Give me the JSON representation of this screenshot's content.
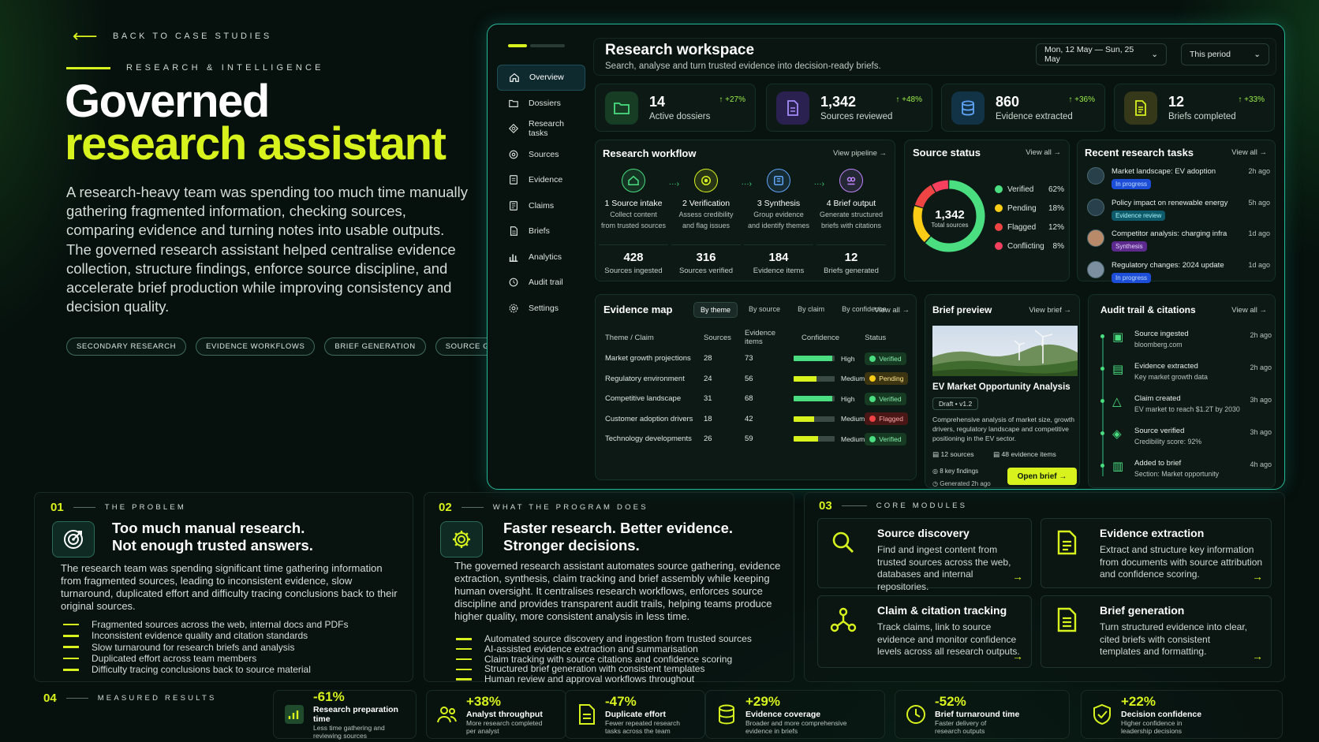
{
  "hero": {
    "back": "BACK TO CASE STUDIES",
    "eyebrow": "RESEARCH & INTELLIGENCE",
    "title1": "Governed",
    "title2": "research assistant",
    "lead": "A research-heavy team was spending too much time manually gathering fragmented information, checking sources, comparing evidence and turning notes into usable outputs. The governed research assistant helped centralise evidence collection, structure findings, enforce source discipline, and accelerate brief production while improving consistency and decision quality.",
    "tags": [
      "SECONDARY RESEARCH",
      "EVIDENCE WORKFLOWS",
      "BRIEF GENERATION",
      "SOURCE GOVERNANCE"
    ]
  },
  "workspace": {
    "nav": [
      "Overview",
      "Dossiers",
      "Research tasks",
      "Sources",
      "Evidence",
      "Claims",
      "Briefs",
      "Analytics",
      "Audit trail",
      "Settings"
    ],
    "title": "Research workspace",
    "subtitle": "Search, analyse and turn trusted evidence into decision-ready briefs.",
    "date_range": "Mon, 12 May — Sun, 25 May",
    "period": "This period",
    "kpis": [
      {
        "value": "14",
        "label": "Active dossiers",
        "delta": "+27%",
        "icon": "folder-icon"
      },
      {
        "value": "1,342",
        "label": "Sources reviewed",
        "delta": "+48%",
        "icon": "document-icon"
      },
      {
        "value": "860",
        "label": "Evidence extracted",
        "delta": "+36%",
        "icon": "database-icon"
      },
      {
        "value": "12",
        "label": "Briefs completed",
        "delta": "+33%",
        "icon": "brief-icon"
      }
    ],
    "workflow": {
      "title": "Research workflow",
      "link": "View pipeline",
      "steps": [
        {
          "title": "1  Source intake",
          "desc1": "Collect content",
          "desc2": "from trusted sources",
          "num": "428",
          "nlabel": "Sources ingested",
          "color": "#4ade80"
        },
        {
          "title": "2  Verification",
          "desc1": "Assess credibility",
          "desc2": "and flag issues",
          "num": "316",
          "nlabel": "Sources verified",
          "color": "#d8f21d"
        },
        {
          "title": "3  Synthesis",
          "desc1": "Group evidence",
          "desc2": "and identify themes",
          "num": "184",
          "nlabel": "Evidence items",
          "color": "#60a5fa"
        },
        {
          "title": "4  Brief output",
          "desc1": "Generate structured",
          "desc2": "briefs with citations",
          "num": "12",
          "nlabel": "Briefs generated",
          "color": "#c084fc"
        }
      ]
    },
    "source_status": {
      "title": "Source status",
      "link": "View all",
      "total": "1,342",
      "total_label": "Total sources",
      "items": [
        {
          "name": "Verified",
          "pct": "62%",
          "value": 62,
          "color": "#4ade80"
        },
        {
          "name": "Pending",
          "pct": "18%",
          "value": 18,
          "color": "#facc15"
        },
        {
          "name": "Flagged",
          "pct": "12%",
          "value": 12,
          "color": "#ef4444"
        },
        {
          "name": "Conflicting",
          "pct": "8%",
          "value": 8,
          "color": "#f43f5e"
        }
      ]
    },
    "tasks": {
      "title": "Recent research tasks",
      "link": "View all",
      "items": [
        {
          "title": "Market landscape: EV adoption",
          "badge": "In progress",
          "ago": "2h ago",
          "bcolor": "#1d4ed8",
          "btext": "#bfdbfe"
        },
        {
          "title": "Policy impact on renewable energy",
          "badge": "Evidence review",
          "ago": "5h ago",
          "bcolor": "#0e5a6b",
          "btext": "#a5f3fc"
        },
        {
          "title": "Competitor analysis: charging infra",
          "badge": "Synthesis",
          "ago": "1d ago",
          "bcolor": "#5b2a8c",
          "btext": "#e9d5ff"
        },
        {
          "title": "Regulatory changes: 2024 update",
          "badge": "In progress",
          "ago": "1d ago",
          "bcolor": "#1d4ed8",
          "btext": "#bfdbfe"
        }
      ]
    },
    "evidence_map": {
      "title": "Evidence map",
      "tabs": [
        "By theme",
        "By source",
        "By claim",
        "By confidence"
      ],
      "link": "View all",
      "cols": [
        "Theme / Claim",
        "Sources",
        "Evidence items",
        "Confidence",
        "Status"
      ],
      "rows": [
        {
          "theme": "Market growth projections",
          "sources": "28",
          "items": "73",
          "conf": "High",
          "level": 0.95,
          "status": "Verified"
        },
        {
          "theme": "Regulatory environment",
          "sources": "24",
          "items": "56",
          "conf": "Medium",
          "level": 0.55,
          "status": "Pending"
        },
        {
          "theme": "Competitive landscape",
          "sources": "31",
          "items": "68",
          "conf": "High",
          "level": 0.95,
          "status": "Verified"
        },
        {
          "theme": "Customer adoption drivers",
          "sources": "18",
          "items": "42",
          "conf": "Medium",
          "level": 0.5,
          "status": "Flagged"
        },
        {
          "theme": "Technology developments",
          "sources": "26",
          "items": "59",
          "conf": "Medium",
          "level": 0.6,
          "status": "Verified"
        }
      ]
    },
    "brief": {
      "title": "Brief preview",
      "link": "View brief",
      "name": "EV Market Opportunity Analysis",
      "draft": "Draft • v1.2",
      "desc": "Comprehensive analysis of market size, growth drivers, regulatory landscape and competitive positioning in the EV sector.",
      "sources": "12 sources",
      "evidence": "48 evidence items",
      "findings": "8 key findings",
      "generated": "Generated 2h ago",
      "button": "Open brief"
    },
    "audit": {
      "title": "Audit trail & citations",
      "link": "View all",
      "items": [
        {
          "title": "Source ingested",
          "sub": "bloomberg.com",
          "ago": "2h ago"
        },
        {
          "title": "Evidence extracted",
          "sub": "Key market growth data",
          "ago": "2h ago"
        },
        {
          "title": "Claim created",
          "sub": "EV market to reach $1.2T by 2030",
          "ago": "3h ago"
        },
        {
          "title": "Source verified",
          "sub": "Credibility score: 92%",
          "ago": "3h ago"
        },
        {
          "title": "Added to brief",
          "sub": "Section: Market opportunity",
          "ago": "4h ago"
        }
      ]
    }
  },
  "problem": {
    "num": "01",
    "label": "THE PROBLEM",
    "title1": "Too much manual research.",
    "title2": "Not enough trusted answers.",
    "text": "The research team was spending significant time gathering information from fragmented sources, leading to inconsistent evidence, slow turnaround, duplicated effort and difficulty tracing conclusions back to their original sources.",
    "bullets": [
      "Fragmented sources across the web, internal docs and PDFs",
      "Inconsistent evidence quality and citation standards",
      "Slow turnaround for research briefs and analysis",
      "Duplicated effort across team members",
      "Difficulty tracing conclusions back to source material"
    ]
  },
  "program": {
    "num": "02",
    "label": "WHAT THE PROGRAM DOES",
    "title1": "Faster research. Better evidence.",
    "title2": "Stronger decisions.",
    "text": "The governed research assistant automates source gathering, evidence extraction, synthesis, claim tracking and brief assembly while keeping human oversight. It centralises research workflows, enforces source discipline and provides transparent audit trails, helping teams produce higher quality, more consistent analysis in less time.",
    "bullets": [
      "Automated source discovery and ingestion from trusted sources",
      "AI-assisted evidence extraction and summarisation",
      "Claim tracking with source citations and confidence scoring",
      "Structured brief generation with consistent templates",
      "Human review and approval workflows throughout"
    ]
  },
  "modules": {
    "num": "03",
    "label": "CORE MODULES",
    "items": [
      {
        "title": "Source discovery",
        "desc": "Find and ingest content from trusted sources across the web, databases and internal repositories."
      },
      {
        "title": "Evidence extraction",
        "desc": "Extract and structure key information from documents with source attribution and confidence scoring."
      },
      {
        "title": "Claim & citation tracking",
        "desc": "Track claims, link to source evidence and monitor confidence levels across all research outputs."
      },
      {
        "title": "Brief generation",
        "desc": "Turn structured evidence into clear, cited briefs with consistent templates and formatting."
      }
    ]
  },
  "results": {
    "num": "04",
    "label": "MEASURED RESULTS",
    "items": [
      {
        "value": "-61%",
        "label": "Research preparation time",
        "sub1": "Less time gathering and",
        "sub2": "reviewing sources"
      },
      {
        "value": "+38%",
        "label": "Analyst throughput",
        "sub1": "More research completed",
        "sub2": "per analyst"
      },
      {
        "value": "-47%",
        "label": "Duplicate effort",
        "sub1": "Fewer repeated research",
        "sub2": "tasks across the team"
      },
      {
        "value": "+29%",
        "label": "Evidence coverage",
        "sub1": "Broader and more comprehensive",
        "sub2": "evidence in briefs"
      },
      {
        "value": "-52%",
        "label": "Brief turnaround time",
        "sub1": "Faster delivery of",
        "sub2": "research outputs"
      },
      {
        "value": "+22%",
        "label": "Decision confidence",
        "sub1": "Higher confidence in",
        "sub2": "leadership decisions"
      }
    ]
  }
}
